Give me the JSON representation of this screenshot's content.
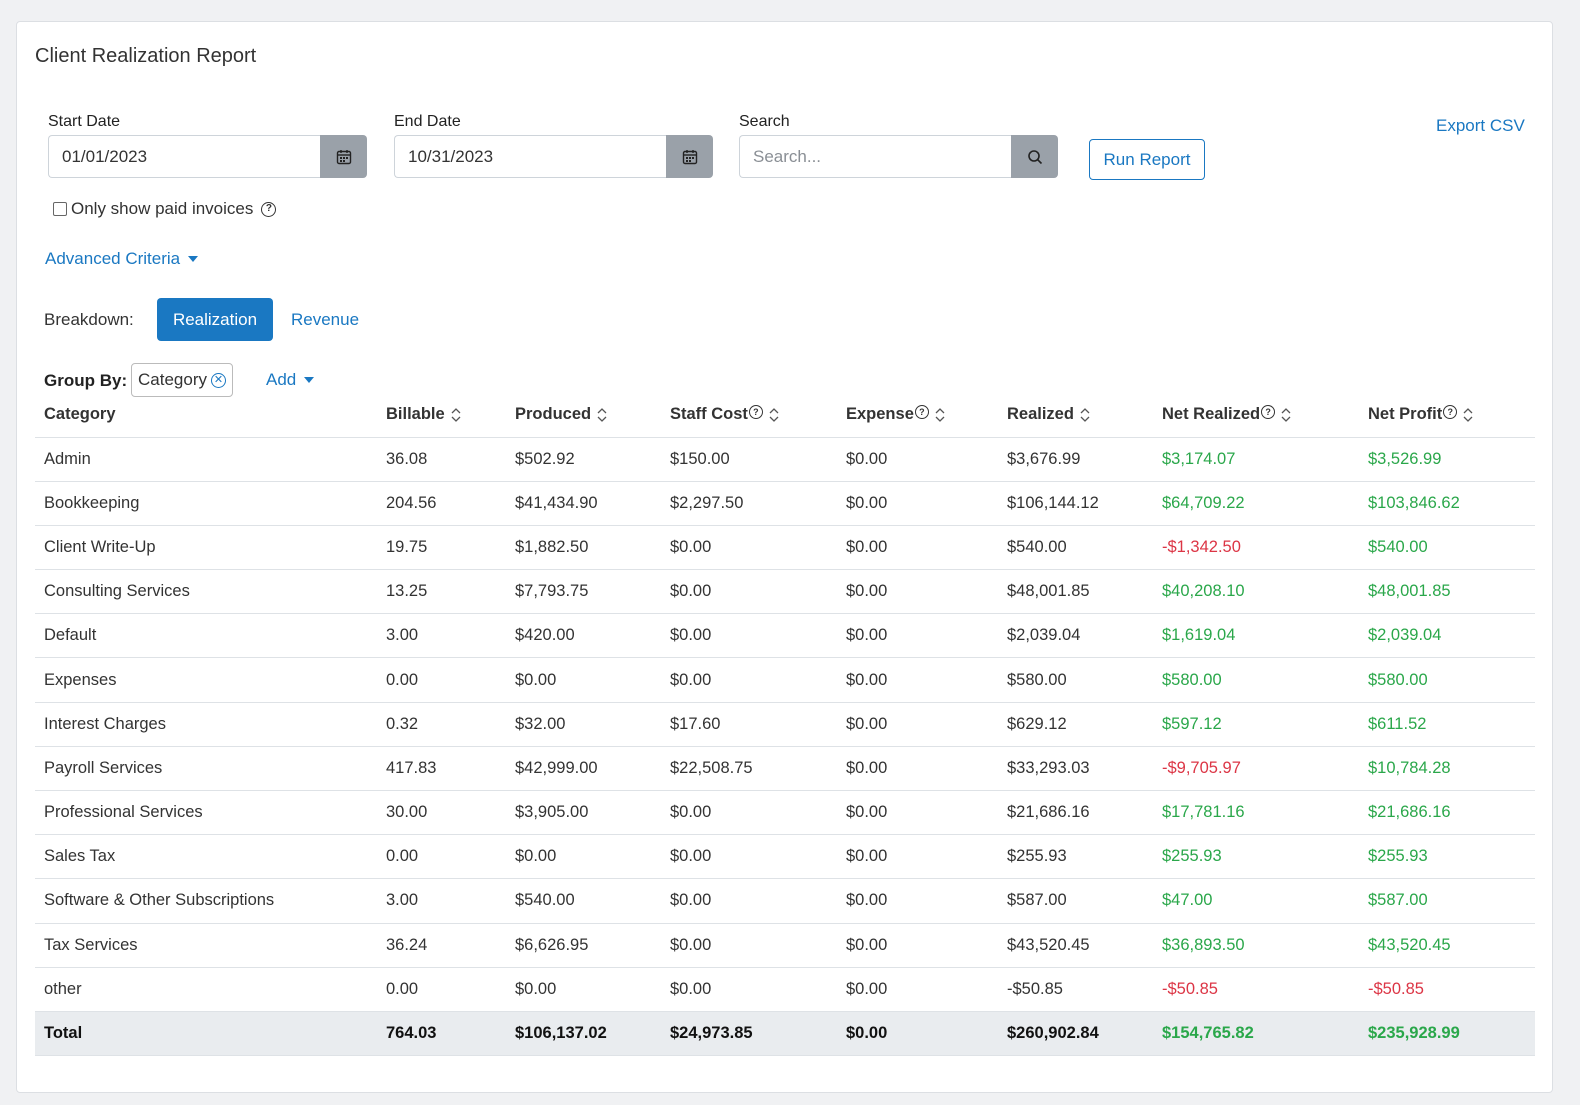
{
  "title": "Client Realization Report",
  "filters": {
    "start_date_label": "Start Date",
    "start_date_value": "01/01/2023",
    "end_date_label": "End Date",
    "end_date_value": "10/31/2023",
    "search_label": "Search",
    "search_placeholder": "Search...",
    "run_report_label": "Run Report",
    "export_csv_label": "Export CSV",
    "paid_only_label": "Only show paid invoices",
    "advanced_label": "Advanced Criteria"
  },
  "breakdown": {
    "label": "Breakdown:",
    "active": "Realization",
    "other": "Revenue"
  },
  "group_by": {
    "label": "Group By:",
    "chip": "Category",
    "add_label": "Add"
  },
  "table": {
    "headers": [
      "Category",
      "Billable",
      "Produced",
      "Staff Cost",
      "Expense",
      "Realized",
      "Net Realized",
      "Net Profit"
    ],
    "rows": [
      [
        "Admin",
        "36.08",
        "$502.92",
        "$150.00",
        "$0.00",
        "$3,676.99",
        "$3,174.07",
        "$3,526.99"
      ],
      [
        "Bookkeeping",
        "204.56",
        "$41,434.90",
        "$2,297.50",
        "$0.00",
        "$106,144.12",
        "$64,709.22",
        "$103,846.62"
      ],
      [
        "Client Write-Up",
        "19.75",
        "$1,882.50",
        "$0.00",
        "$0.00",
        "$540.00",
        "-$1,342.50",
        "$540.00"
      ],
      [
        "Consulting Services",
        "13.25",
        "$7,793.75",
        "$0.00",
        "$0.00",
        "$48,001.85",
        "$40,208.10",
        "$48,001.85"
      ],
      [
        "Default",
        "3.00",
        "$420.00",
        "$0.00",
        "$0.00",
        "$2,039.04",
        "$1,619.04",
        "$2,039.04"
      ],
      [
        "Expenses",
        "0.00",
        "$0.00",
        "$0.00",
        "$0.00",
        "$580.00",
        "$580.00",
        "$580.00"
      ],
      [
        "Interest Charges",
        "0.32",
        "$32.00",
        "$17.60",
        "$0.00",
        "$629.12",
        "$597.12",
        "$611.52"
      ],
      [
        "Payroll Services",
        "417.83",
        "$42,999.00",
        "$22,508.75",
        "$0.00",
        "$33,293.03",
        "-$9,705.97",
        "$10,784.28"
      ],
      [
        "Professional Services",
        "30.00",
        "$3,905.00",
        "$0.00",
        "$0.00",
        "$21,686.16",
        "$17,781.16",
        "$21,686.16"
      ],
      [
        "Sales Tax",
        "0.00",
        "$0.00",
        "$0.00",
        "$0.00",
        "$255.93",
        "$255.93",
        "$255.93"
      ],
      [
        "Software & Other Subscriptions",
        "3.00",
        "$540.00",
        "$0.00",
        "$0.00",
        "$587.00",
        "$47.00",
        "$587.00"
      ],
      [
        "Tax Services",
        "36.24",
        "$6,626.95",
        "$0.00",
        "$0.00",
        "$43,520.45",
        "$36,893.50",
        "$43,520.45"
      ],
      [
        "other",
        "0.00",
        "$0.00",
        "$0.00",
        "$0.00",
        "-$50.85",
        "-$50.85",
        "-$50.85"
      ]
    ],
    "total": [
      "Total",
      "764.03",
      "$106,137.02",
      "$24,973.85",
      "$0.00",
      "$260,902.84",
      "$154,765.82",
      "$235,928.99"
    ]
  },
  "colors": {
    "accent": "#1a78c2",
    "positive": "#2aa74a",
    "negative": "#dc3545"
  }
}
